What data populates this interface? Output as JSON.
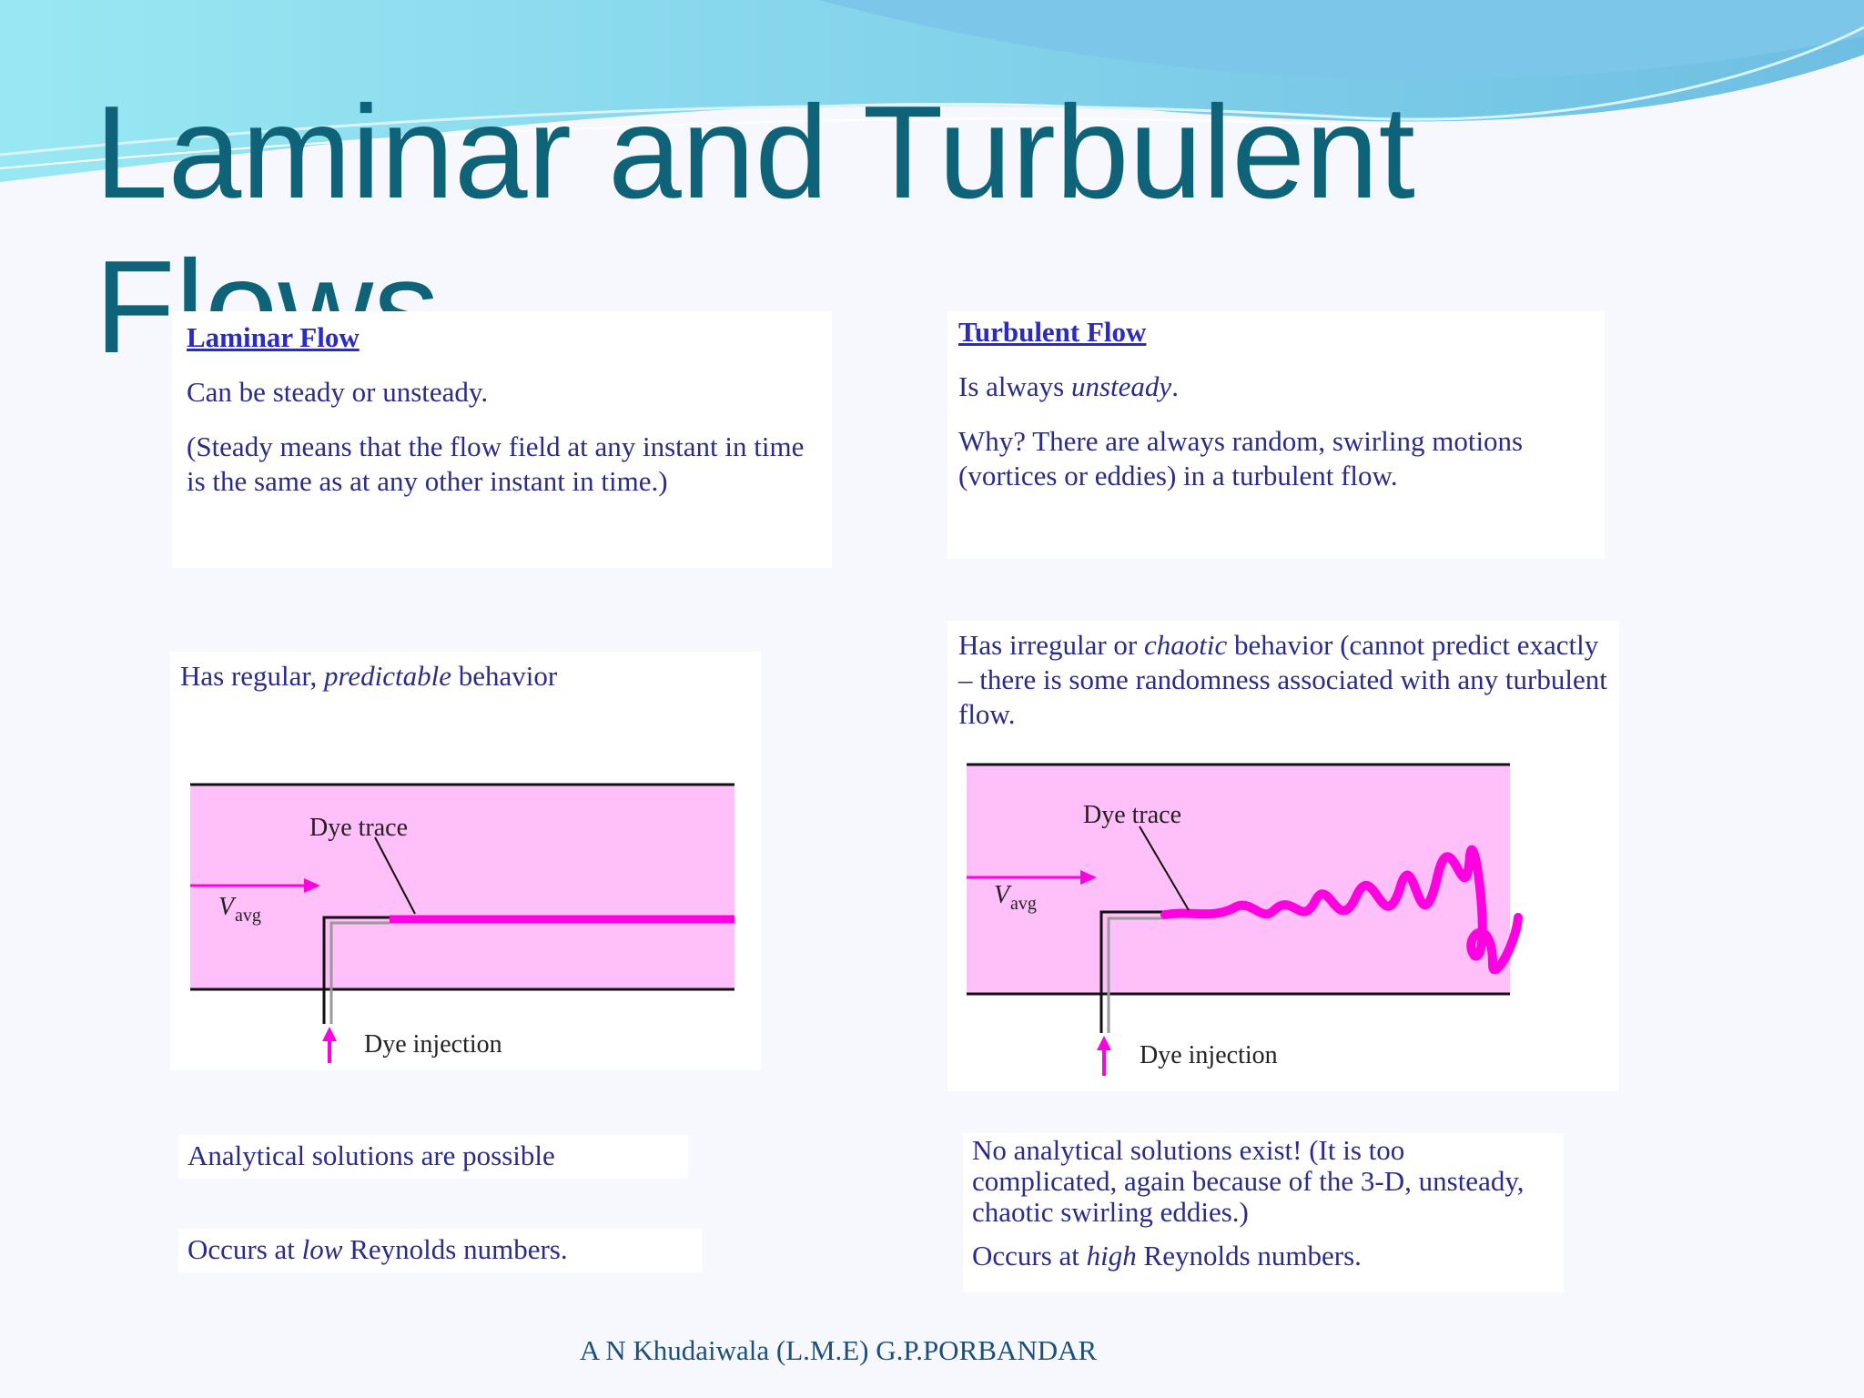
{
  "title": "Laminar and Turbulent Flows",
  "laminar": {
    "heading": "Laminar Flow",
    "steady": "Can be steady or unsteady.",
    "steady_note": "(Steady means that the flow field at any instant in time is the same as at any other instant in time.)",
    "behavior": [
      "Has regular, ",
      "predictable",
      " behavior"
    ],
    "diagram": {
      "dye_trace": "Dye trace",
      "velocity": "V",
      "velocity_sub": "avg",
      "dye_injection": "Dye injection"
    },
    "analytical": "Analytical solutions are possible",
    "reynolds": [
      "Occurs at ",
      "low",
      " Reynolds numbers."
    ]
  },
  "turbulent": {
    "heading": "Turbulent Flow",
    "steady": [
      "Is always ",
      "unsteady",
      "."
    ],
    "steady_note": "Why? There are always random, swirling motions (vortices or eddies) in a turbulent flow.",
    "behavior": [
      "Has irregular or ",
      "chaotic",
      " behavior (cannot predict exactly – there is some randomness associated with any turbulent flow."
    ],
    "diagram": {
      "dye_trace": "Dye trace",
      "velocity": "V",
      "velocity_sub": "avg",
      "dye_injection": "Dye injection"
    },
    "analytical": "No analytical solutions exist! (It is too complicated, again because of the 3-D, unsteady, chaotic swirling eddies.)",
    "reynolds": [
      "Occurs at ",
      "high",
      " Reynolds numbers."
    ]
  },
  "footer": "A N Khudaiwala  (L.M.E) G.P.PORBANDAR"
}
